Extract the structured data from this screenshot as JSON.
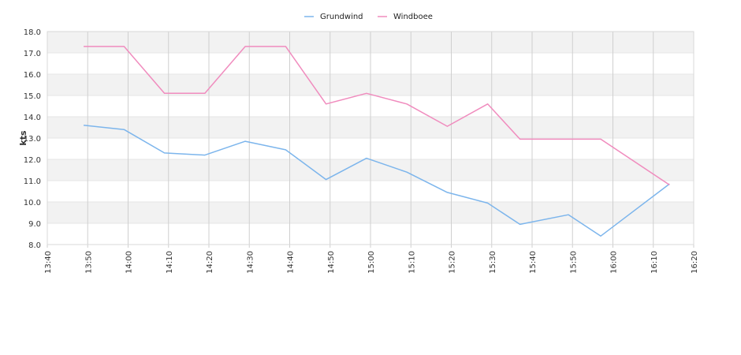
{
  "chart_data": {
    "type": "line",
    "ylabel": "kts",
    "ylim": [
      8.0,
      18.0
    ],
    "y_ticks": [
      "8.0",
      "9.0",
      "10.0",
      "11.0",
      "12.0",
      "13.0",
      "14.0",
      "15.0",
      "16.0",
      "17.0",
      "18.0"
    ],
    "x_ticks": [
      "13:40",
      "13:50",
      "14:00",
      "14:10",
      "14:20",
      "14:30",
      "14:40",
      "14:50",
      "15:00",
      "15:10",
      "15:20",
      "15:30",
      "15:40",
      "15:50",
      "16:00",
      "16:10",
      "16:20"
    ],
    "xlim": [
      "13:40",
      "16:20"
    ],
    "grid": true,
    "legend_position": "top-center",
    "series": [
      {
        "name": "Grundwind",
        "color": "#7cb5ec",
        "points": [
          {
            "x": "13:49",
            "y": 13.6
          },
          {
            "x": "13:59",
            "y": 13.4
          },
          {
            "x": "14:09",
            "y": 12.3
          },
          {
            "x": "14:19",
            "y": 12.2
          },
          {
            "x": "14:29",
            "y": 12.85
          },
          {
            "x": "14:39",
            "y": 12.45
          },
          {
            "x": "14:49",
            "y": 11.05
          },
          {
            "x": "14:59",
            "y": 12.05
          },
          {
            "x": "15:09",
            "y": 11.4
          },
          {
            "x": "15:19",
            "y": 10.45
          },
          {
            "x": "15:29",
            "y": 9.95
          },
          {
            "x": "15:37",
            "y": 8.95
          },
          {
            "x": "15:49",
            "y": 9.4
          },
          {
            "x": "15:57",
            "y": 8.4
          },
          {
            "x": "16:14",
            "y": 10.85
          }
        ]
      },
      {
        "name": "Windboee",
        "color": "#f08cbe",
        "points": [
          {
            "x": "13:49",
            "y": 17.3
          },
          {
            "x": "13:59",
            "y": 17.3
          },
          {
            "x": "14:09",
            "y": 15.1
          },
          {
            "x": "14:19",
            "y": 15.1
          },
          {
            "x": "14:29",
            "y": 17.3
          },
          {
            "x": "14:39",
            "y": 17.3
          },
          {
            "x": "14:49",
            "y": 14.6
          },
          {
            "x": "14:59",
            "y": 15.1
          },
          {
            "x": "15:09",
            "y": 14.6
          },
          {
            "x": "15:19",
            "y": 13.55
          },
          {
            "x": "15:29",
            "y": 14.6
          },
          {
            "x": "15:37",
            "y": 12.95
          },
          {
            "x": "15:49",
            "y": 12.95
          },
          {
            "x": "15:57",
            "y": 12.95
          },
          {
            "x": "16:14",
            "y": 10.8
          }
        ]
      }
    ]
  }
}
